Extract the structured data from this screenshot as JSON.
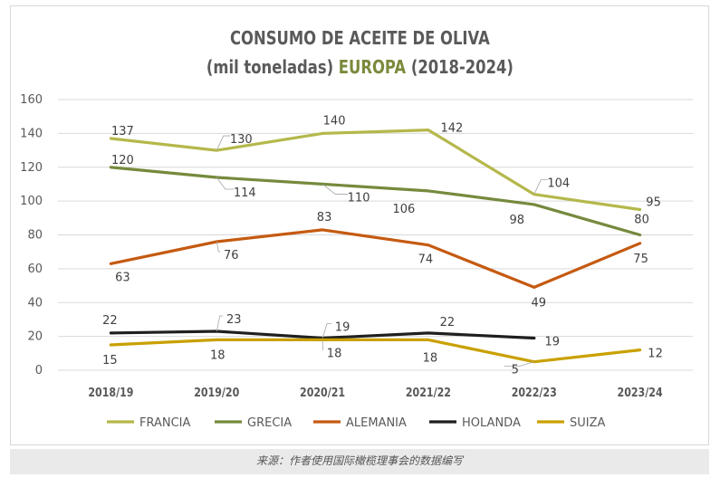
{
  "title": {
    "line1": "CONSUMO DE ACEITE DE OLIVA",
    "line2_prefix": "(mil toneladas) ",
    "line2_accent": "EUROPA",
    "line2_suffix": " (2018-2024)"
  },
  "source": "来源：作者使用国际橄榄理事会的数据编写",
  "colors": {
    "title_accent": "#7a8a3c",
    "grid": "#d9d9d9",
    "axis_text": "#595959",
    "label_text": "#404040"
  },
  "chart_data": {
    "type": "line",
    "categories": [
      "2018/19",
      "2019/20",
      "2020/21",
      "2021/22",
      "2022/23",
      "2023/24"
    ],
    "ylim": [
      0,
      160
    ],
    "yticks": [
      "0",
      "20",
      "40",
      "60",
      "80",
      "100",
      "120",
      "140",
      "160"
    ],
    "grid": true,
    "legend_position": "bottom",
    "xlabel": "",
    "ylabel": "",
    "series": [
      {
        "name": "FRANCIA",
        "color": "#b5b84b",
        "values": [
          137,
          130,
          140,
          142,
          104,
          95
        ],
        "labels": [
          "137",
          "130",
          "140",
          "142",
          "104",
          "95"
        ]
      },
      {
        "name": "GRECIA",
        "color": "#758a3d",
        "values": [
          120,
          114,
          110,
          106,
          98,
          80
        ],
        "labels": [
          "120",
          "114",
          "110",
          "106",
          "98",
          "80"
        ]
      },
      {
        "name": "ALEMANIA",
        "color": "#c55a11",
        "values": [
          63,
          76,
          83,
          74,
          49,
          75
        ],
        "labels": [
          "63",
          "76",
          "83",
          "74",
          "49",
          "75"
        ]
      },
      {
        "name": "HOLANDA",
        "color": "#1f1f1f",
        "values": [
          22,
          23,
          19,
          22,
          19,
          null
        ],
        "labels": [
          "22",
          "23",
          "19",
          "22",
          "19",
          null
        ]
      },
      {
        "name": "SUIZA",
        "color": "#c9a000",
        "values": [
          15,
          18,
          18,
          18,
          5,
          12
        ],
        "labels": [
          "15",
          "18",
          "18",
          "18",
          "5",
          "12"
        ]
      }
    ]
  }
}
